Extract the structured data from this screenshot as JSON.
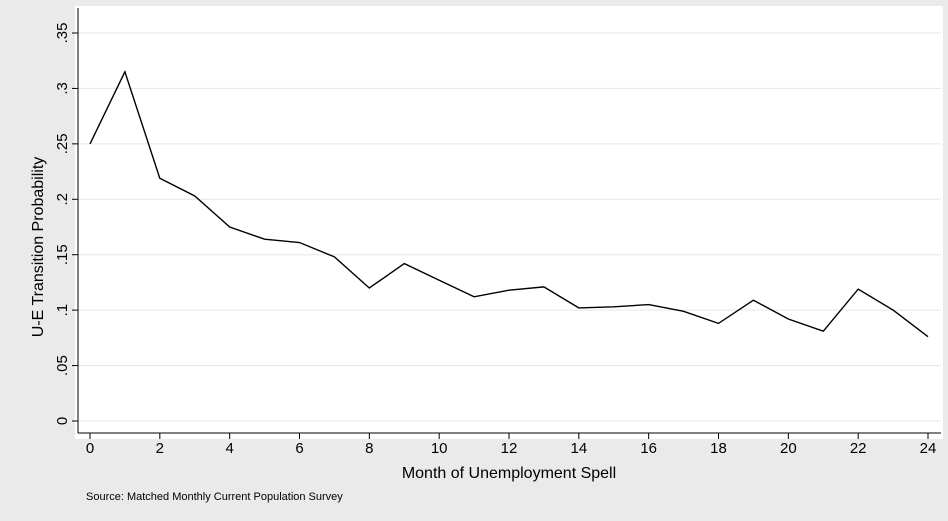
{
  "chart_data": {
    "type": "line",
    "title": "",
    "xlabel": "Month of Unemployment Spell",
    "ylabel": "U-E Transition Probability",
    "note": "Source: Matched Monthly Current Population Survey",
    "xlim": [
      0,
      24
    ],
    "ylim": [
      0,
      0.35
    ],
    "x_ticks": [
      0,
      2,
      4,
      6,
      8,
      10,
      12,
      14,
      16,
      18,
      20,
      22,
      24
    ],
    "x_tick_labels": [
      "0",
      "2",
      "4",
      "6",
      "8",
      "10",
      "12",
      "14",
      "16",
      "18",
      "20",
      "22",
      "24"
    ],
    "y_ticks": [
      0,
      0.05,
      0.1,
      0.15,
      0.2,
      0.25,
      0.3,
      0.35
    ],
    "y_tick_labels": [
      "0",
      ".05",
      ".1",
      ".15",
      ".2",
      ".25",
      ".3",
      ".35"
    ],
    "grid": "horizontal",
    "legend": "none",
    "colors": {
      "background": "#eaeaea",
      "plot_area": "#ffffff",
      "line": "#000000",
      "grid": "#e6e6e6"
    },
    "series": [
      {
        "x": [
          0,
          1,
          2,
          3,
          4,
          5,
          6,
          7,
          8,
          9,
          10,
          11,
          12,
          13,
          14,
          15,
          16,
          17,
          18,
          19,
          20,
          21,
          22,
          23,
          24
        ],
        "values": [
          0.25,
          0.315,
          0.219,
          0.203,
          0.175,
          0.164,
          0.161,
          0.148,
          0.12,
          0.142,
          0.127,
          0.112,
          0.118,
          0.121,
          0.102,
          0.103,
          0.105,
          0.099,
          0.088,
          0.109,
          0.092,
          0.081,
          0.119,
          0.1,
          0.076
        ]
      }
    ]
  }
}
